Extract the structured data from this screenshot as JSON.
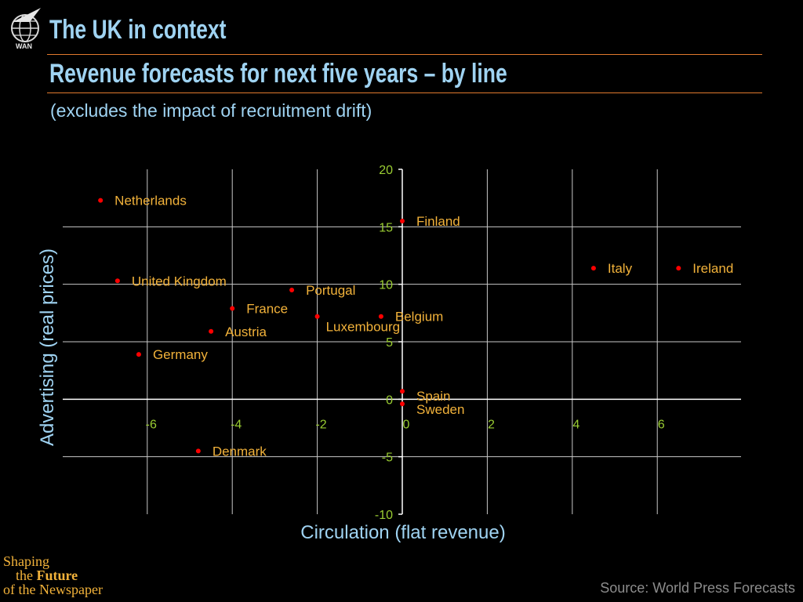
{
  "header": {
    "title": "The UK in context",
    "subtitle": "Revenue forecasts for next five years – by line",
    "note": "(excludes the impact of recruitment drift)",
    "logo_text": "WAN",
    "logo_icon": "globe-icon"
  },
  "footer": {
    "brand": {
      "line1": "Shaping",
      "line2a": "the",
      "line2b": "Future",
      "line3": "of the Newspaper"
    },
    "source": "Source: World Press Forecasts"
  },
  "colors": {
    "background": "#000000",
    "title": "#9fd3f2",
    "rule": "#e07a2e",
    "point": "#ff0000",
    "point_label": "#f2b23a",
    "tick_label": "#9acd32",
    "gridline": "#c8c8c8",
    "axis": "#ffffff",
    "axis_label": "#9fd3f2",
    "source": "#8c8c8c"
  },
  "chart_data": {
    "type": "scatter",
    "title": "",
    "xlabel": "Circulation (flat revenue)",
    "ylabel": "Advertising (real prices)",
    "xlim": [
      -8,
      8
    ],
    "ylim": [
      -10,
      20
    ],
    "xticks": [
      -6,
      -4,
      -2,
      0,
      2,
      4,
      6
    ],
    "yticks": [
      -10,
      -5,
      0,
      5,
      10,
      15,
      20
    ],
    "grid": true,
    "points": [
      {
        "label": "Netherlands",
        "x": -7.1,
        "y": 17.3
      },
      {
        "label": "Finland",
        "x": 0.0,
        "y": 15.5
      },
      {
        "label": "Italy",
        "x": 4.5,
        "y": 11.4
      },
      {
        "label": "Ireland",
        "x": 6.5,
        "y": 11.4
      },
      {
        "label": "United Kingdom",
        "x": -6.7,
        "y": 10.3
      },
      {
        "label": "Portugal",
        "x": -2.6,
        "y": 9.5
      },
      {
        "label": "France",
        "x": -4.0,
        "y": 7.9
      },
      {
        "label": "Belgium",
        "x": -0.5,
        "y": 7.2
      },
      {
        "label": "Luxembourg",
        "x": -2.0,
        "y": 7.2
      },
      {
        "label": "Austria",
        "x": -4.5,
        "y": 5.9
      },
      {
        "label": "Germany",
        "x": -6.2,
        "y": 3.9
      },
      {
        "label": "Spain",
        "x": 0.0,
        "y": 0.7
      },
      {
        "label": "Sweden",
        "x": 0.0,
        "y": -0.4
      },
      {
        "label": "Denmark",
        "x": -4.8,
        "y": -4.5
      }
    ]
  }
}
